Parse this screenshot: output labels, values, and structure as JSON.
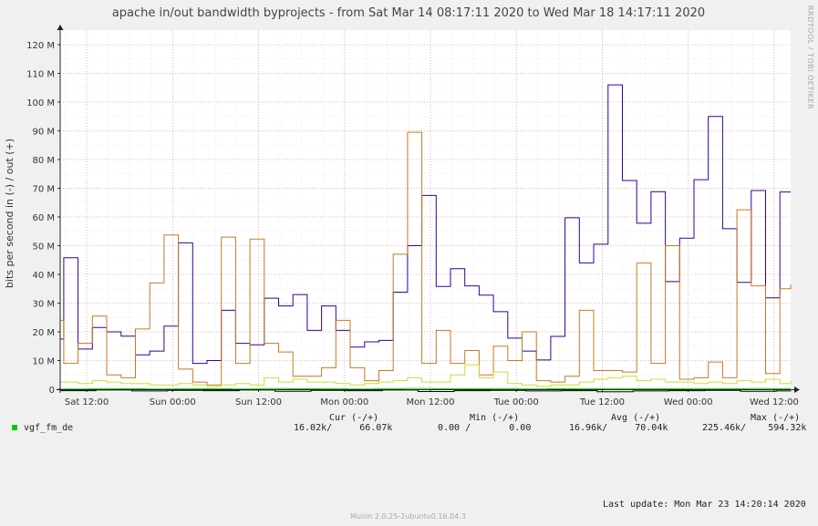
{
  "title": "apache in/out bandwidth byprojects - from Sat Mar 14 08:17:11 2020 to Wed Mar 18 14:17:11 2020",
  "side_label": "RRDTOOL / TOBI OETIKER",
  "legend": {
    "headers": {
      "cur": "Cur (-/+)",
      "min": "Min (-/+)",
      "avg": "Avg (-/+)",
      "max": "Max (-/+)"
    },
    "rows": [
      {
        "name": "vgf_fm_de",
        "cur": "16.02k/     66.07k",
        "min": "0.00 /       0.00",
        "avg": "16.96k/     70.04k",
        "max": "225.46k/    594.32k",
        "color": "#00cc00"
      }
    ]
  },
  "footer": {
    "last_update": "Last update:  Mon Mar 23 14:20:14 2020",
    "version": "Munin 2.0.25-2ubuntu0.16.04.3"
  },
  "chart_data": {
    "type": "line",
    "ylabel": "bits per second in (-) / out (+)",
    "ylim": [
      0,
      120000000
    ],
    "yticks": [
      {
        "v": 0,
        "label": "0"
      },
      {
        "v": 10000000,
        "label": "10 M"
      },
      {
        "v": 20000000,
        "label": "20 M"
      },
      {
        "v": 30000000,
        "label": "30 M"
      },
      {
        "v": 40000000,
        "label": "40 M"
      },
      {
        "v": 50000000,
        "label": "50 M"
      },
      {
        "v": 60000000,
        "label": "60 M"
      },
      {
        "v": 70000000,
        "label": "70 M"
      },
      {
        "v": 80000000,
        "label": "80 M"
      },
      {
        "v": 90000000,
        "label": "90 M"
      },
      {
        "v": 100000000,
        "label": "100 M"
      },
      {
        "v": 110000000,
        "label": "110 M"
      },
      {
        "v": 120000000,
        "label": "120 M"
      }
    ],
    "xrange_hours": [
      0,
      102
    ],
    "xticks": [
      {
        "h": 3.7,
        "label": "Sat 12:00"
      },
      {
        "h": 15.7,
        "label": "Sun 00:00"
      },
      {
        "h": 27.7,
        "label": "Sun 12:00"
      },
      {
        "h": 39.7,
        "label": "Mon 00:00"
      },
      {
        "h": 51.7,
        "label": "Mon 12:00"
      },
      {
        "h": 63.7,
        "label": "Tue 00:00"
      },
      {
        "h": 75.7,
        "label": "Tue 12:00"
      },
      {
        "h": 87.7,
        "label": "Wed 00:00"
      },
      {
        "h": 99.7,
        "label": "Wed 12:00"
      }
    ],
    "series": [
      {
        "color": "#330099",
        "x": [
          0,
          0.5,
          2.5,
          4.5,
          6.5,
          8.5,
          10.5,
          12.5,
          14.5,
          16.5,
          18.5,
          20.5,
          22.5,
          24.5,
          26.5,
          28.5,
          30.5,
          32.5,
          34.5,
          36.5,
          38.5,
          40.5,
          42.5,
          44.5,
          46.5,
          48.5,
          50.5,
          52.5,
          54.5,
          56.5,
          58.5,
          60.5,
          62.5,
          64.5,
          66.5,
          68.5,
          70.5,
          72.5,
          74.5,
          76.5,
          78.5,
          80.5,
          82.5,
          84.5,
          86.5,
          88.5,
          90.5,
          92.5,
          94.5,
          96.5,
          98.5,
          100.5,
          102
        ],
        "y": [
          17500000,
          45800000,
          14000000,
          21500000,
          20000000,
          18500000,
          12000000,
          13300000,
          22000000,
          51000000,
          9000000,
          10000000,
          27500000,
          16000000,
          15500000,
          31700000,
          29000000,
          33000000,
          20500000,
          29000000,
          20500000,
          14700000,
          16500000,
          17000000,
          33800000,
          50000000,
          67500000,
          35800000,
          42000000,
          36000000,
          32800000,
          27000000,
          17800000,
          13300000,
          10200000,
          18400000,
          59700000,
          44000000,
          50500000,
          106000000,
          72700000,
          57800000,
          68800000,
          37500000,
          52600000,
          73000000,
          95000000,
          55900000,
          37200000,
          69200000,
          31800000,
          68700000,
          68700000
        ]
      },
      {
        "color": "#cc7722",
        "x": [
          0,
          0.5,
          2.5,
          4.5,
          6.5,
          8.5,
          10.5,
          12.5,
          14.5,
          16.5,
          18.5,
          20.5,
          22.5,
          24.5,
          26.5,
          28.5,
          30.5,
          32.5,
          34.5,
          36.5,
          38.5,
          40.5,
          42.5,
          44.5,
          46.5,
          48.5,
          50.5,
          52.5,
          54.5,
          56.5,
          58.5,
          60.5,
          62.5,
          64.5,
          66.5,
          68.5,
          70.5,
          72.5,
          74.5,
          76.5,
          78.5,
          80.5,
          82.5,
          84.5,
          86.5,
          88.5,
          90.5,
          92.5,
          94.5,
          96.5,
          98.5,
          100.5,
          102
        ],
        "y": [
          24000000,
          9000000,
          16000000,
          25500000,
          5000000,
          4000000,
          21000000,
          37000000,
          53700000,
          7000000,
          2500000,
          1500000,
          53000000,
          9000000,
          52300000,
          16000000,
          13000000,
          4500000,
          4500000,
          7500000,
          24000000,
          7500000,
          3000000,
          6500000,
          47000000,
          89500000,
          9000000,
          20500000,
          9000000,
          13500000,
          5000000,
          15000000,
          10000000,
          20000000,
          3000000,
          2500000,
          4500000,
          27500000,
          6500000,
          6500000,
          6000000,
          44000000,
          9000000,
          50000000,
          3500000,
          4000000,
          9500000,
          4000000,
          62500000,
          36000000,
          5500000,
          35000000,
          36500000
        ]
      },
      {
        "color": "#ccdd33",
        "x": [
          0,
          2.5,
          4.5,
          6.5,
          8.5,
          10.5,
          12.5,
          14.5,
          16.5,
          18.5,
          20.5,
          22.5,
          24.5,
          26.5,
          28.5,
          30.5,
          32.5,
          34.5,
          36.5,
          38.5,
          40.5,
          42.5,
          44.5,
          46.5,
          48.5,
          50.5,
          52.5,
          54.5,
          56.5,
          58.5,
          60.5,
          62.5,
          64.5,
          66.5,
          68.5,
          70.5,
          72.5,
          74.5,
          76.5,
          78.5,
          80.5,
          82.5,
          84.5,
          86.5,
          88.5,
          90.5,
          92.5,
          94.5,
          96.5,
          98.5,
          100.5,
          102
        ],
        "y": [
          2500000,
          2000000,
          3000000,
          2500000,
          2000000,
          2000000,
          1500000,
          1500000,
          2000000,
          1500000,
          1000000,
          1500000,
          2000000,
          1500000,
          4000000,
          2500000,
          3500000,
          2500000,
          2500000,
          2000000,
          1500000,
          2000000,
          2500000,
          3000000,
          4000000,
          2500000,
          2500000,
          5000000,
          8500000,
          4000000,
          6000000,
          2000000,
          1500000,
          1000000,
          1500000,
          1500000,
          2500000,
          3500000,
          4000000,
          4500000,
          3000000,
          3500000,
          2500000,
          2500000,
          2000000,
          2500000,
          2000000,
          3000000,
          2500000,
          3500000,
          2000000,
          3000000
        ]
      },
      {
        "color": "#000000",
        "x": [
          0,
          5,
          10,
          15,
          20,
          25,
          30,
          35,
          40,
          45,
          50,
          55,
          60,
          65,
          70,
          75,
          80,
          85,
          90,
          95,
          100,
          102
        ],
        "y": [
          -500000,
          -300000,
          -600000,
          -400000,
          -500000,
          -300000,
          -700000,
          -400000,
          -500000,
          -300000,
          -800000,
          -500000,
          -400000,
          -600000,
          -500000,
          -900000,
          -600000,
          -500000,
          -400000,
          -700000,
          -600000,
          -500000
        ]
      },
      {
        "color": "#00cc00",
        "x": [
          0,
          4,
          8,
          12,
          16,
          20,
          24,
          28,
          32,
          36,
          40,
          44,
          48,
          52,
          56,
          60,
          64,
          68,
          72,
          76,
          80,
          84,
          88,
          92,
          96,
          100,
          102
        ],
        "y": [
          100000,
          200000,
          150000,
          100000,
          200000,
          150000,
          100000,
          250000,
          150000,
          200000,
          100000,
          200000,
          300000,
          200000,
          150000,
          250000,
          100000,
          150000,
          200000,
          250000,
          200000,
          150000,
          200000,
          150000,
          250000,
          200000,
          200000
        ]
      }
    ]
  }
}
